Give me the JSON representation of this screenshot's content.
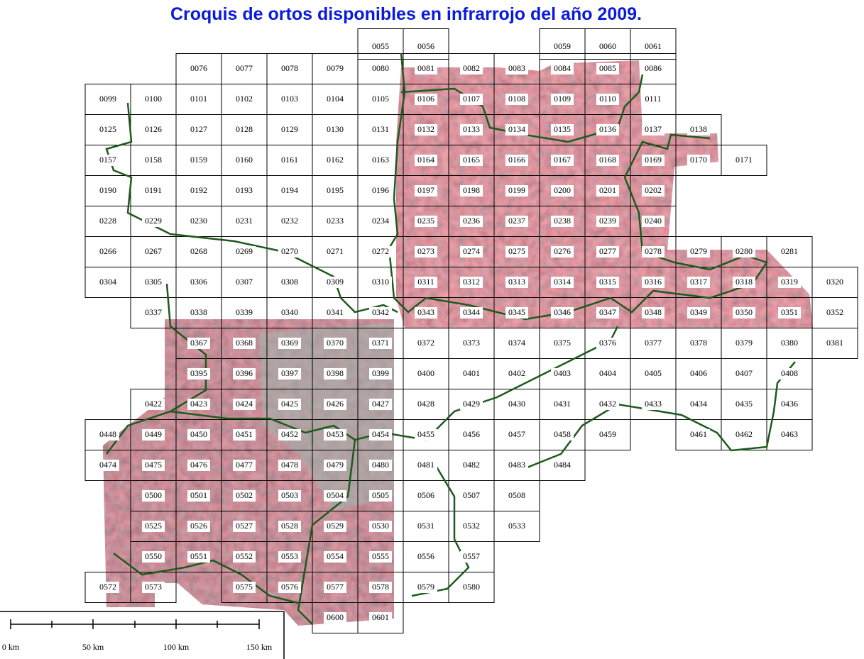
{
  "title": "Croquis de ortos disponibles en infrarrojo del año 2009.",
  "sheets": [
    [
      "0055",
      "0056",
      "0059",
      "0060",
      "0061"
    ],
    [
      "0076",
      "0077",
      "0078",
      "0079",
      "0080",
      "0081",
      "0082",
      "0083",
      "0084",
      "0085",
      "0086"
    ],
    [
      "0099",
      "0100",
      "0101",
      "0102",
      "0103",
      "0104",
      "0105",
      "0106",
      "0107",
      "0108",
      "0109",
      "0110",
      "0111"
    ],
    [
      "0125",
      "0126",
      "0127",
      "0128",
      "0129",
      "0130",
      "0131",
      "0132",
      "0133",
      "0134",
      "0135",
      "0136",
      "0137",
      "0138"
    ],
    [
      "0157",
      "0158",
      "0159",
      "0160",
      "0161",
      "0162",
      "0163",
      "0164",
      "0165",
      "0166",
      "0167",
      "0168",
      "0169",
      "0170",
      "0171"
    ],
    [
      "0190",
      "0191",
      "0192",
      "0193",
      "0194",
      "0195",
      "0196",
      "0197",
      "0198",
      "0199",
      "0200",
      "0201",
      "0202"
    ],
    [
      "0228",
      "0229",
      "0230",
      "0231",
      "0232",
      "0233",
      "0234",
      "0235",
      "0236",
      "0237",
      "0238",
      "0239",
      "0240"
    ],
    [
      "0266",
      "0267",
      "0268",
      "0269",
      "0270",
      "0271",
      "0272",
      "0273",
      "0274",
      "0275",
      "0276",
      "0277",
      "0278",
      "0279",
      "0280",
      "0281"
    ],
    [
      "0304",
      "0305",
      "0306",
      "0307",
      "0308",
      "0309",
      "0310",
      "0311",
      "0312",
      "0313",
      "0314",
      "0315",
      "0316",
      "0317",
      "0318",
      "0319",
      "0320"
    ],
    [
      "0337",
      "0338",
      "0339",
      "0340",
      "0341",
      "0342",
      "0343",
      "0344",
      "0345",
      "0346",
      "0347",
      "0348",
      "0349",
      "0350",
      "0351",
      "0352"
    ],
    [
      "0367",
      "0368",
      "0369",
      "0370",
      "0371",
      "0372",
      "0373",
      "0374",
      "0375",
      "0376",
      "0377",
      "0378",
      "0379",
      "0380",
      "0381"
    ],
    [
      "0395",
      "0396",
      "0397",
      "0398",
      "0399",
      "0400",
      "0401",
      "0402",
      "0403",
      "0404",
      "0405",
      "0406",
      "0407",
      "0408"
    ],
    [
      "0422",
      "0423",
      "0424",
      "0425",
      "0426",
      "0427",
      "0428",
      "0429",
      "0430",
      "0431",
      "0432",
      "0433",
      "0434",
      "0435",
      "0436"
    ],
    [
      "0448",
      "0449",
      "0450",
      "0451",
      "0452",
      "0453",
      "0454",
      "0455",
      "0456",
      "0457",
      "0458",
      "0459",
      "0461",
      "0462",
      "0463"
    ],
    [
      "0474",
      "0475",
      "0476",
      "0477",
      "0478",
      "0479",
      "0480",
      "0481",
      "0482",
      "0483",
      "0484"
    ],
    [
      "0500",
      "0501",
      "0502",
      "0503",
      "0504",
      "0505",
      "0506",
      "0507",
      "0508"
    ],
    [
      "0525",
      "0526",
      "0527",
      "0528",
      "0529",
      "0530",
      "0531",
      "0532",
      "0533"
    ],
    [
      "0550",
      "0551",
      "0552",
      "0553",
      "0554",
      "0555",
      "0556",
      "0557"
    ],
    [
      "0572",
      "0573",
      "0575",
      "0576",
      "0577",
      "0578",
      "0579",
      "0580"
    ],
    [
      "0600",
      "0601"
    ]
  ],
  "scale": [
    "0 km",
    "50 km",
    "100 km",
    "150 km"
  ]
}
